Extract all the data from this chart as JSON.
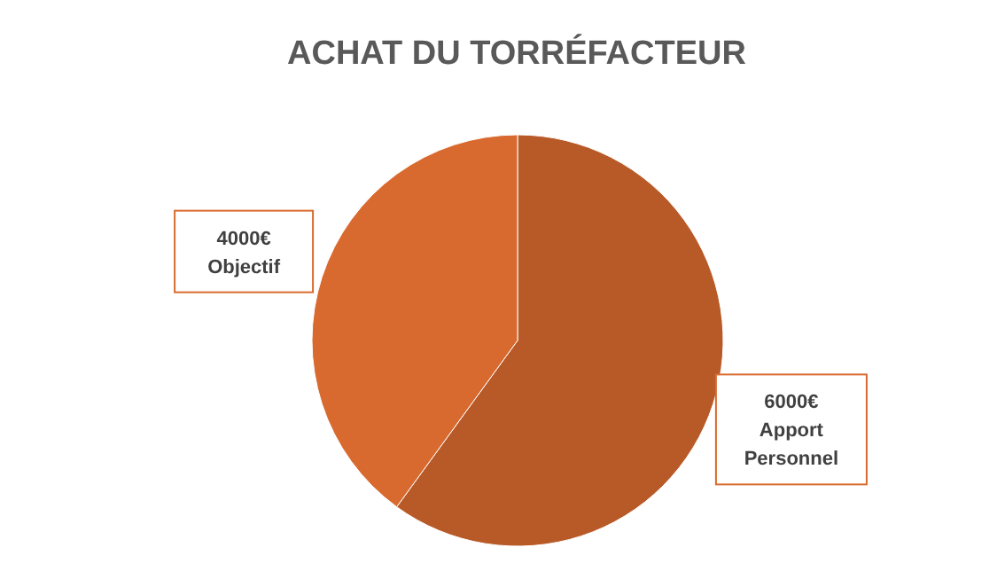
{
  "chart_data": {
    "type": "pie",
    "title": "ACHAT DU TORRÉFACTEUR",
    "categories": [
      "Apport Personnel",
      "Objectif"
    ],
    "values": [
      6000,
      4000
    ],
    "colors": [
      "#b85a28",
      "#d96a2f"
    ],
    "value_labels": [
      "6000€",
      "4000€"
    ]
  }
}
